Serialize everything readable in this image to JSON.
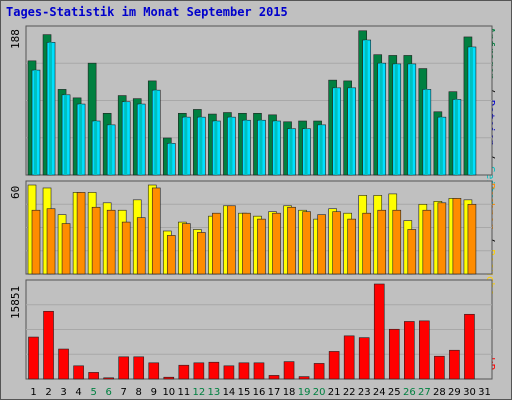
{
  "title": "Tages-Statistik im Monat September 2015",
  "colors": {
    "title": "#0000cc",
    "anfragen": "#008040",
    "dateien": "#00e0ff",
    "seiten": "#00c0c0",
    "besuche": "#ffff00",
    "rechner": "#ff8c00",
    "kb": "#ff0000",
    "weekend_day": "#008040",
    "plot_bg": "#c0c0c0"
  },
  "chart_data": [
    {
      "type": "bar",
      "panel": "hits",
      "ymax_label": "188",
      "ylim": [
        0,
        188
      ],
      "grid": true,
      "side_labels": [
        {
          "text": "Anfragen",
          "color": "#008040"
        },
        {
          "text": " / ",
          "color": "#000000"
        },
        {
          "text": "Dateien",
          "color": "#0000cc"
        },
        {
          "text": " / ",
          "color": "#000000"
        },
        {
          "text": "Seiten",
          "color": "#00c0c0"
        }
      ],
      "series": [
        {
          "name": "Anfragen",
          "color": "#008040",
          "values": [
            148,
            182,
            111,
            100,
            145,
            80,
            103,
            99,
            122,
            48,
            80,
            85,
            79,
            81,
            80,
            80,
            78,
            69,
            70,
            70,
            123,
            122,
            187,
            156,
            155,
            155,
            138,
            82,
            108,
            179
          ]
        },
        {
          "name": "Dateien",
          "color": "#00e0ff",
          "values": [
            136,
            172,
            104,
            92,
            70,
            65,
            95,
            92,
            110,
            41,
            75,
            75,
            70,
            75,
            71,
            71,
            70,
            60,
            60,
            65,
            113,
            113,
            175,
            145,
            144,
            144,
            111,
            75,
            98,
            166
          ]
        },
        {
          "name": "Seiten",
          "color": "#00c0c0",
          "values": [
            136,
            172,
            104,
            92,
            70,
            65,
            95,
            92,
            110,
            41,
            75,
            75,
            70,
            75,
            71,
            71,
            70,
            60,
            60,
            65,
            113,
            113,
            175,
            145,
            144,
            144,
            111,
            75,
            98,
            166
          ]
        }
      ]
    },
    {
      "type": "bar",
      "panel": "visits",
      "ymax_label": "60",
      "ylim": [
        0,
        60
      ],
      "grid": true,
      "side_labels": [
        {
          "text": "Rechner",
          "color": "#ff8c00"
        },
        {
          "text": " / ",
          "color": "#000000"
        },
        {
          "text": "Besuche",
          "color": "#ffd000"
        }
      ],
      "series": [
        {
          "name": "Besuche",
          "color": "#ffff00",
          "values": [
            60,
            58,
            40,
            55,
            55,
            48,
            43,
            50,
            60,
            29,
            35,
            30,
            39,
            46,
            41,
            39,
            42,
            46,
            43,
            37,
            44,
            41,
            53,
            53,
            54,
            36,
            47,
            49,
            51,
            50
          ]
        },
        {
          "name": "Rechner",
          "color": "#ff8c00",
          "values": [
            43,
            44,
            34,
            55,
            45,
            43,
            35,
            38,
            58,
            26,
            34,
            28,
            41,
            46,
            41,
            37,
            41,
            45,
            42,
            40,
            42,
            37,
            41,
            43,
            43,
            30,
            43,
            48,
            51,
            47
          ]
        }
      ]
    },
    {
      "type": "bar",
      "panel": "kb",
      "ymax_label": "15851",
      "ylim": [
        0,
        15851
      ],
      "grid": true,
      "side_labels": [
        {
          "text": "kB",
          "color": "#ff0000"
        }
      ],
      "series": [
        {
          "name": "kB",
          "color": "#ff0000",
          "values": [
            7000,
            11300,
            5000,
            2200,
            1100,
            200,
            3700,
            3700,
            2700,
            300,
            2300,
            2700,
            2800,
            2200,
            2700,
            2700,
            600,
            2900,
            400,
            2600,
            4600,
            7200,
            6900,
            15851,
            8300,
            9600,
            9700,
            3800,
            4800,
            10800
          ]
        }
      ]
    }
  ],
  "x_labels": [
    {
      "label": "1",
      "weekend": false
    },
    {
      "label": "2",
      "weekend": false
    },
    {
      "label": "3",
      "weekend": false
    },
    {
      "label": "4",
      "weekend": false
    },
    {
      "label": "5",
      "weekend": true
    },
    {
      "label": "6",
      "weekend": true
    },
    {
      "label": "7",
      "weekend": false
    },
    {
      "label": "8",
      "weekend": false
    },
    {
      "label": "9",
      "weekend": false
    },
    {
      "label": "10",
      "weekend": false
    },
    {
      "label": "11",
      "weekend": false
    },
    {
      "label": "12",
      "weekend": true
    },
    {
      "label": "13",
      "weekend": true
    },
    {
      "label": "14",
      "weekend": false
    },
    {
      "label": "15",
      "weekend": false
    },
    {
      "label": "16",
      "weekend": false
    },
    {
      "label": "17",
      "weekend": false
    },
    {
      "label": "18",
      "weekend": false
    },
    {
      "label": "19",
      "weekend": true
    },
    {
      "label": "20",
      "weekend": true
    },
    {
      "label": "21",
      "weekend": false
    },
    {
      "label": "22",
      "weekend": false
    },
    {
      "label": "23",
      "weekend": false
    },
    {
      "label": "24",
      "weekend": false
    },
    {
      "label": "25",
      "weekend": false
    },
    {
      "label": "26",
      "weekend": true
    },
    {
      "label": "27",
      "weekend": true
    },
    {
      "label": "28",
      "weekend": false
    },
    {
      "label": "29",
      "weekend": false
    },
    {
      "label": "30",
      "weekend": false
    },
    {
      "label": "31",
      "weekend": false
    }
  ]
}
